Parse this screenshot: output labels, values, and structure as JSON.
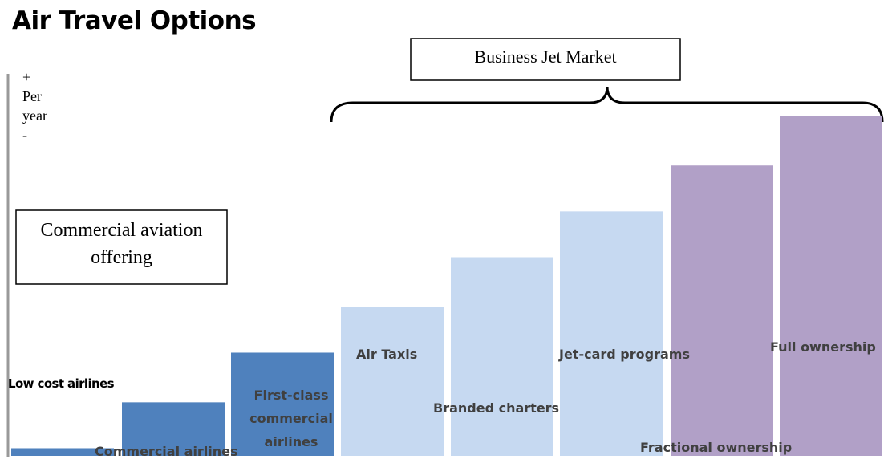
{
  "chart_data": {
    "type": "bar",
    "title": "Air Travel Options",
    "categories": [
      "Low cost airlines",
      "Commercial airlines",
      "First-class\ncommercial airlines",
      "Air Taxis",
      "Branded charters",
      "Jet-card programs",
      "Fractional ownership",
      "Full ownership"
    ],
    "values": [
      2,
      14,
      27,
      39,
      52,
      64,
      76,
      89
    ],
    "colors": [
      "#4f81bd",
      "#4f81bd",
      "#4f81bd",
      "#c6d9f1",
      "#c6d9f1",
      "#c6d9f1",
      "#b1a0c7",
      "#b1a0c7"
    ],
    "ylim": [
      0,
      100
    ],
    "y_axis_label": [
      "+",
      "Per",
      "year",
      "-"
    ],
    "annotations": [
      "Business Jet Market",
      "Commercial aviation\noffering"
    ]
  }
}
